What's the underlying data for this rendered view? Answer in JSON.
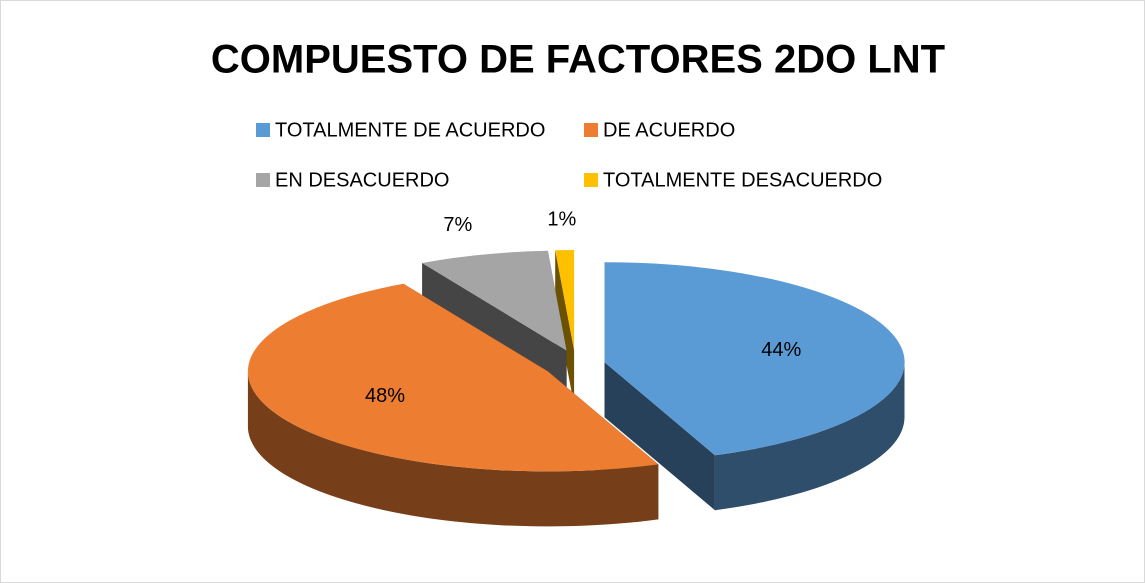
{
  "chart_data": {
    "type": "pie",
    "title": "COMPUESTO DE FACTORES 2DO LNT",
    "categories": [
      "TOTALMENTE DE ACUERDO",
      "DE ACUERDO",
      "EN DESACUERDO",
      "TOTALMENTE DESACUERDO"
    ],
    "values": [
      44,
      48,
      7,
      1
    ],
    "value_labels": [
      "44%",
      "48%",
      "7%",
      "1%"
    ],
    "colors": [
      "#5b9bd5",
      "#ed7d31",
      "#a5a5a5",
      "#ffc000"
    ],
    "legend": "top"
  }
}
